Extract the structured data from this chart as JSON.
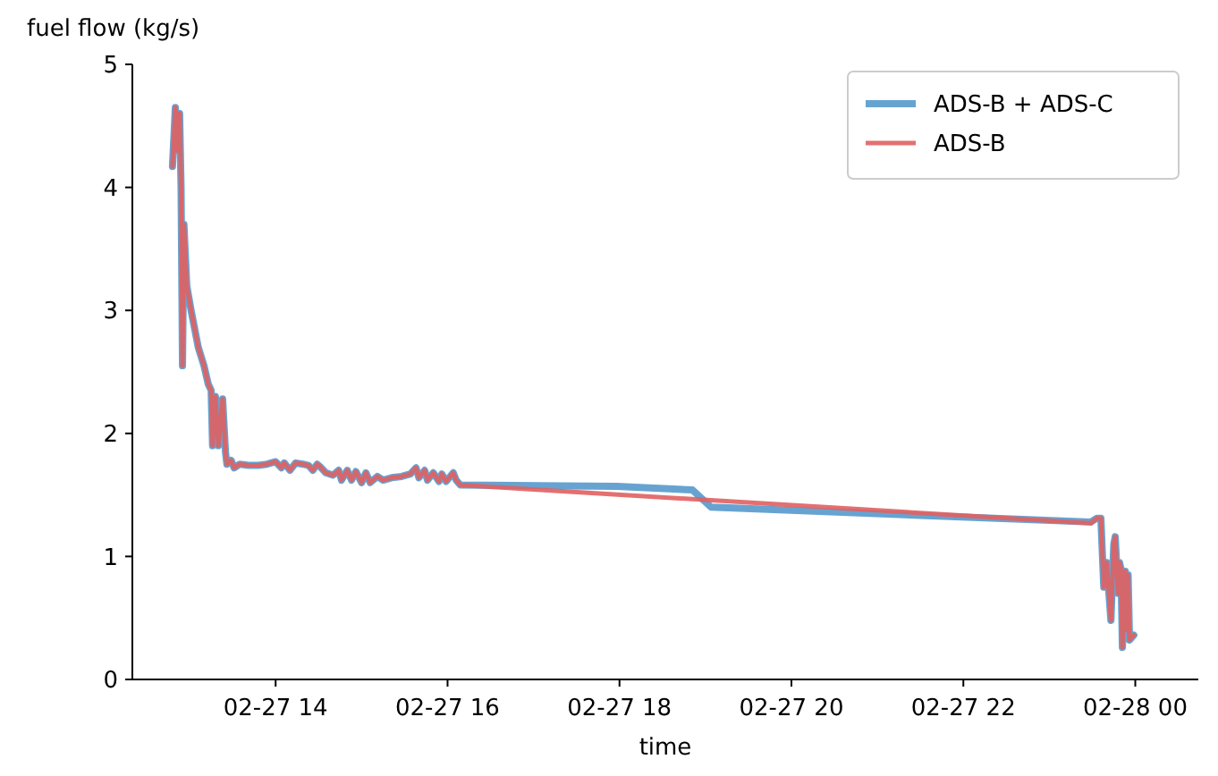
{
  "chart_data": {
    "type": "line",
    "ylabel": "fuel flow (kg/s)",
    "xlabel": "time",
    "xlim": [
      "--02-27T12:20",
      "--02-28T00:44"
    ],
    "xticks": [
      {
        "value": "--02-27T14:00",
        "label": "02-27 14"
      },
      {
        "value": "--02-27T16:00",
        "label": "02-27 16"
      },
      {
        "value": "--02-27T18:00",
        "label": "02-27 18"
      },
      {
        "value": "--02-27T20:00",
        "label": "02-27 20"
      },
      {
        "value": "--02-27T22:00",
        "label": "02-27 22"
      },
      {
        "value": "--02-28T00:00",
        "label": "02-28 00"
      }
    ],
    "ylim": [
      0,
      5
    ],
    "yticks": [
      0,
      1,
      2,
      3,
      4,
      5
    ],
    "grid": false,
    "legend": "top right",
    "line_style": "solid",
    "series": [
      {
        "name": "ADS-B + ADS-C",
        "color": "#5f9ecf",
        "x": [
          "--02-27T12:48",
          "--02-27T12:50",
          "--02-27T12:51",
          "--02-27T12:53",
          "--02-27T12:54",
          "--02-27T12:55",
          "--02-27T12:56",
          "--02-27T12:58",
          "--02-27T13:01",
          "--02-27T13:06",
          "--02-27T13:10",
          "--02-27T13:13",
          "--02-27T13:15",
          "--02-27T13:16",
          "--02-27T13:18",
          "--02-27T13:20",
          "--02-27T13:23",
          "--02-27T13:25",
          "--02-27T13:26",
          "--02-27T13:29",
          "--02-27T13:31",
          "--02-27T13:35",
          "--02-27T13:41",
          "--02-27T13:48",
          "--02-27T13:54",
          "--02-27T14:00",
          "--02-27T14:04",
          "--02-27T14:06",
          "--02-27T14:10",
          "--02-27T14:14",
          "--02-27T14:19",
          "--02-27T14:23",
          "--02-27T14:26",
          "--02-27T14:29",
          "--02-27T14:31",
          "--02-27T14:35",
          "--02-27T14:40",
          "--02-27T14:44",
          "--02-27T14:46",
          "--02-27T14:50",
          "--02-27T14:53",
          "--02-27T14:56",
          "--02-27T15:00",
          "--02-27T15:03",
          "--02-27T15:06",
          "--02-27T15:11",
          "--02-27T15:15",
          "--02-27T15:21",
          "--02-27T15:28",
          "--02-27T15:34",
          "--02-27T15:38",
          "--02-27T15:40",
          "--02-27T15:44",
          "--02-27T15:46",
          "--02-27T15:50",
          "--02-27T15:54",
          "--02-27T15:56",
          "--02-27T15:59",
          "--02-27T16:04",
          "--02-27T16:06",
          "--02-27T16:09",
          "--02-27T17:58",
          "--02-27T18:51",
          "--02-27T19:04",
          "--02-27T23:29",
          "--02-27T23:33",
          "--02-27T23:36",
          "--02-27T23:38",
          "--02-27T23:40",
          "--02-27T23:43",
          "--02-27T23:45",
          "--02-27T23:46",
          "--02-27T23:48",
          "--02-27T23:49",
          "--02-27T23:50",
          "--02-27T23:51",
          "--02-27T23:53",
          "--02-27T23:54",
          "--02-27T23:55",
          "--02-27T23:56",
          "--02-27T23:59"
        ],
        "values": [
          4.17,
          4.65,
          4.3,
          4.6,
          4.0,
          2.55,
          3.7,
          3.2,
          3.0,
          2.7,
          2.55,
          2.4,
          2.35,
          1.9,
          2.3,
          1.9,
          2.28,
          1.85,
          1.75,
          1.78,
          1.72,
          1.75,
          1.74,
          1.74,
          1.75,
          1.77,
          1.72,
          1.76,
          1.7,
          1.76,
          1.75,
          1.74,
          1.7,
          1.75,
          1.73,
          1.68,
          1.66,
          1.7,
          1.62,
          1.7,
          1.62,
          1.69,
          1.6,
          1.68,
          1.6,
          1.65,
          1.62,
          1.64,
          1.65,
          1.67,
          1.72,
          1.64,
          1.7,
          1.62,
          1.68,
          1.61,
          1.67,
          1.61,
          1.68,
          1.62,
          1.58,
          1.57,
          1.54,
          1.4,
          1.28,
          1.31,
          1.31,
          0.75,
          0.95,
          0.48,
          1.1,
          1.16,
          0.7,
          0.95,
          0.9,
          0.26,
          0.88,
          0.4,
          0.85,
          0.32,
          0.36
        ]
      },
      {
        "name": "ADS-B",
        "color": "#e06060",
        "x": [
          "--02-27T12:48",
          "--02-27T12:50",
          "--02-27T12:51",
          "--02-27T12:53",
          "--02-27T12:54",
          "--02-27T12:55",
          "--02-27T12:56",
          "--02-27T12:58",
          "--02-27T13:01",
          "--02-27T13:06",
          "--02-27T13:10",
          "--02-27T13:13",
          "--02-27T13:15",
          "--02-27T13:16",
          "--02-27T13:18",
          "--02-27T13:20",
          "--02-27T13:23",
          "--02-27T13:25",
          "--02-27T13:26",
          "--02-27T13:29",
          "--02-27T13:31",
          "--02-27T13:35",
          "--02-27T13:41",
          "--02-27T13:48",
          "--02-27T13:54",
          "--02-27T14:00",
          "--02-27T14:04",
          "--02-27T14:06",
          "--02-27T14:10",
          "--02-27T14:14",
          "--02-27T14:19",
          "--02-27T14:23",
          "--02-27T14:26",
          "--02-27T14:29",
          "--02-27T14:31",
          "--02-27T14:35",
          "--02-27T14:40",
          "--02-27T14:44",
          "--02-27T14:46",
          "--02-27T14:50",
          "--02-27T14:53",
          "--02-27T14:56",
          "--02-27T15:00",
          "--02-27T15:03",
          "--02-27T15:06",
          "--02-27T15:11",
          "--02-27T15:15",
          "--02-27T15:21",
          "--02-27T15:28",
          "--02-27T15:34",
          "--02-27T15:38",
          "--02-27T15:40",
          "--02-27T15:44",
          "--02-27T15:46",
          "--02-27T15:50",
          "--02-27T15:54",
          "--02-27T15:56",
          "--02-27T15:59",
          "--02-27T16:04",
          "--02-27T16:06",
          "--02-27T16:09",
          "--02-27T23:29",
          "--02-27T23:33",
          "--02-27T23:36",
          "--02-27T23:38",
          "--02-27T23:40",
          "--02-27T23:43",
          "--02-27T23:45",
          "--02-27T23:46",
          "--02-27T23:48",
          "--02-27T23:49",
          "--02-27T23:50",
          "--02-27T23:51",
          "--02-27T23:53",
          "--02-27T23:54",
          "--02-27T23:55",
          "--02-27T23:56",
          "--02-27T23:59"
        ],
        "values": [
          4.17,
          4.65,
          4.3,
          4.6,
          4.0,
          2.55,
          3.7,
          3.2,
          3.0,
          2.7,
          2.55,
          2.4,
          2.35,
          1.9,
          2.3,
          1.9,
          2.28,
          1.85,
          1.75,
          1.78,
          1.72,
          1.75,
          1.74,
          1.74,
          1.75,
          1.77,
          1.72,
          1.76,
          1.7,
          1.76,
          1.75,
          1.74,
          1.7,
          1.75,
          1.73,
          1.68,
          1.66,
          1.7,
          1.62,
          1.7,
          1.62,
          1.69,
          1.6,
          1.68,
          1.6,
          1.65,
          1.62,
          1.64,
          1.65,
          1.67,
          1.72,
          1.64,
          1.7,
          1.62,
          1.68,
          1.61,
          1.67,
          1.61,
          1.68,
          1.62,
          1.58,
          1.27,
          1.31,
          1.31,
          0.75,
          0.95,
          0.48,
          1.1,
          1.16,
          0.7,
          0.95,
          0.9,
          0.26,
          0.88,
          0.4,
          0.85,
          0.32,
          0.36
        ]
      }
    ]
  }
}
